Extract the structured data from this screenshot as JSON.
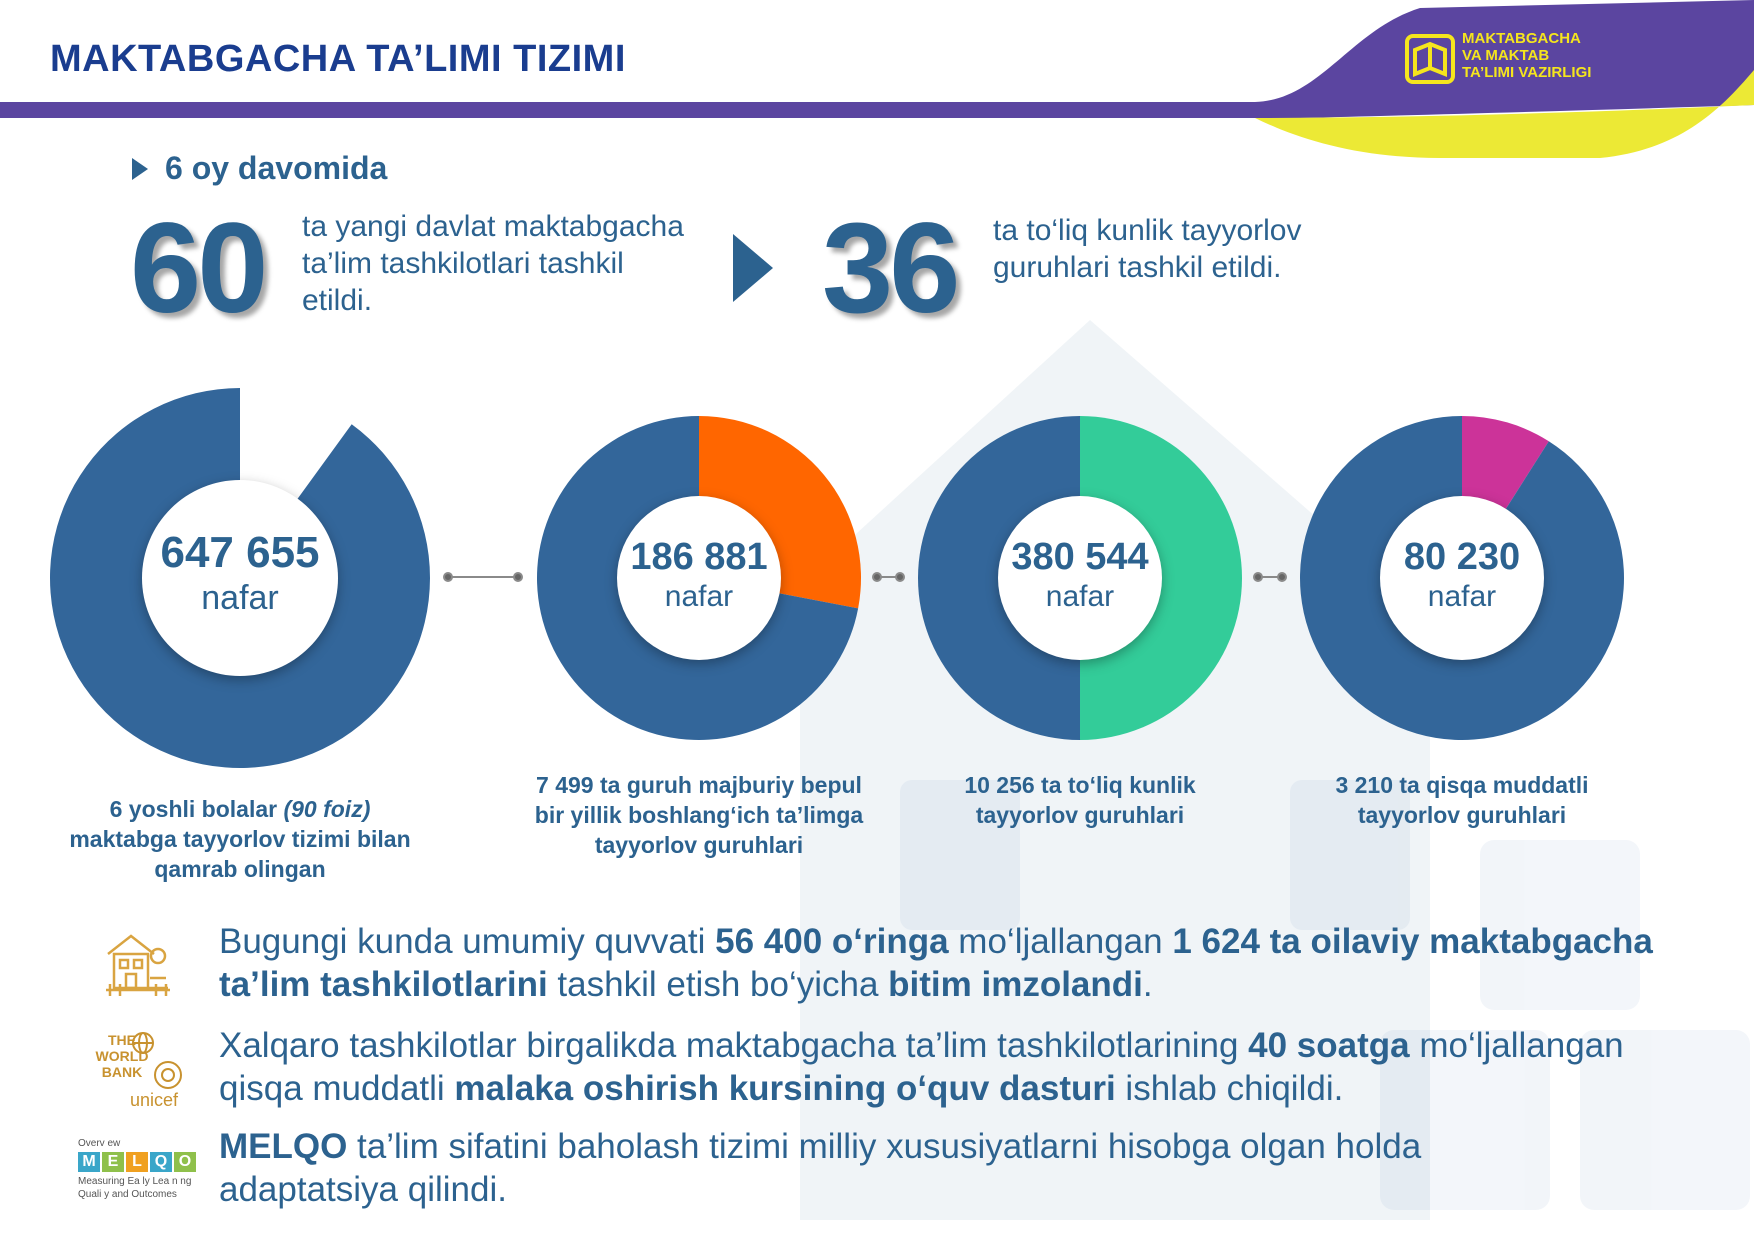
{
  "header": {
    "title": "MAKTABGACHA TA’LIMI TIZIMI",
    "logo_lines": [
      "MAKTABGACHA",
      "VA MAKTAB",
      "TA’LIMI VAZIRLIGI"
    ],
    "colors": {
      "band": "#5b45a0",
      "accent": "#ece935",
      "title": "#1a3d8f"
    }
  },
  "period": "6 oy davomida",
  "stats": [
    {
      "value": "60",
      "text": "ta yangi davlat maktabgacha ta’lim tashkilotlari tashkil etildi."
    },
    {
      "value": "36",
      "text": "ta to‘liq kunlik tayyorlov guruhlari tashkil etildi."
    }
  ],
  "chart_data": [
    {
      "type": "pie",
      "slices": [
        {
          "value": 90,
          "color": "#33669a"
        },
        {
          "value": 10,
          "color": "#ffffff"
        }
      ],
      "center_value": "647 655",
      "center_unit": "nafar",
      "caption_parts": [
        "6 yoshli bolalar ",
        "(90 foiz)",
        " maktabga tayyorlov tizimi bilan qamrab olingan"
      ]
    },
    {
      "type": "pie",
      "slices": [
        {
          "value": 72,
          "color": "#33669a"
        },
        {
          "value": 28,
          "color": "#ff6600"
        }
      ],
      "center_value": "186 881",
      "center_unit": "nafar",
      "caption": "7 499 ta guruh majburiy bepul bir yillik boshlang‘ich ta’limga tayyorlov guruhlari"
    },
    {
      "type": "pie",
      "slices": [
        {
          "value": 50,
          "color": "#33669a"
        },
        {
          "value": 50,
          "color": "#33cc99"
        }
      ],
      "center_value": "380 544",
      "center_unit": "nafar",
      "caption": "10 256 ta to‘liq kunlik tayyorlov guruhlari"
    },
    {
      "type": "pie",
      "slices": [
        {
          "value": 91,
          "color": "#33669a"
        },
        {
          "value": 9,
          "color": "#cc3399"
        }
      ],
      "center_value": "80 230",
      "center_unit": "nafar",
      "caption": "3 210 ta qisqa muddatli tayyorlov guruhlari"
    }
  ],
  "paragraphs": [
    {
      "icon": "family-kindergarten-icon",
      "parts": [
        {
          "t": "Bugungi kunda umumiy quvvati ",
          "b": false
        },
        {
          "t": "56 400 o‘ringa",
          "b": true
        },
        {
          "t": " mo‘ljallangan ",
          "b": false
        },
        {
          "t": "1 624 ta  oilaviy maktabgacha ta’lim tashkilotlarini",
          "b": true
        },
        {
          "t": " tashkil etish bo‘yicha ",
          "b": false
        },
        {
          "t": "bitim imzolandi",
          "b": true
        },
        {
          "t": ".",
          "b": false
        }
      ]
    },
    {
      "icon": "world-bank-unicef-logo",
      "parts": [
        {
          "t": "Xalqaro tashkilotlar birgalikda maktabgacha ta’lim tashkilotlarining ",
          "b": false
        },
        {
          "t": "40 soatga",
          "b": true
        },
        {
          "t": " mo‘ljallangan qisqa muddatli ",
          "b": false
        },
        {
          "t": "malaka oshirish kursining o‘quv dasturi",
          "b": true
        },
        {
          "t": " ishlab chiqildi.",
          "b": false
        }
      ]
    },
    {
      "icon": "melqo-logo",
      "parts": [
        {
          "t": "MELQO",
          "b": true
        },
        {
          "t": " ta’lim sifatini baholash tizimi milliy xususiyatlarni hisobga olgan holda adaptatsiya qilindi.",
          "b": false
        }
      ]
    }
  ],
  "logos": {
    "world_bank": [
      "THE",
      "WORLD",
      "BANK"
    ],
    "unicef": "unicef",
    "melqo_top": "Overv ew",
    "melqo_letters": [
      "M",
      "E",
      "L",
      "Q",
      "O"
    ],
    "melqo_colors": [
      "#3aa6c9",
      "#8fc04b",
      "#f0a020",
      "#3aa6c9",
      "#8fc04b"
    ],
    "melqo_sub": [
      "Measuring Ea ly Lea n ng",
      "Quali y and Outcomes"
    ]
  }
}
